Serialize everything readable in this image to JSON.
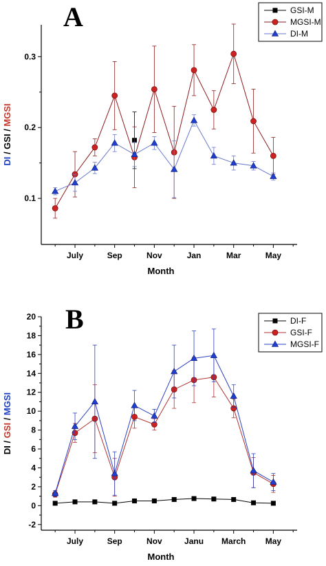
{
  "chart_data": [
    {
      "panel": "A",
      "type": "line",
      "xlabel": "Month",
      "ylabel_parts": [
        {
          "text": "DI",
          "color": "#1f3fbf"
        },
        {
          "text": " / ",
          "color": "#000000"
        },
        {
          "text": "GSI",
          "color": "#000000"
        },
        {
          "text": " / ",
          "color": "#000000"
        },
        {
          "text": "MGSI",
          "color": "#c0392b"
        }
      ],
      "x_tick_labels": [
        "July",
        "Sep",
        "Nov",
        "Jan",
        "Mar",
        "May"
      ],
      "x_tick_positions": [
        2,
        4,
        6,
        8,
        10,
        12
      ],
      "xlim": [
        0.3,
        13.2
      ],
      "ylim": [
        0.035,
        0.345
      ],
      "y_ticks": [
        0.1,
        0.2,
        0.3
      ],
      "y_tick_labels": [
        "0.1",
        "0.2",
        "0.3"
      ],
      "legend_position": "top-right",
      "series": [
        {
          "name": "GSI-M",
          "color": "#000000",
          "line_color": "#000000",
          "marker": "square",
          "x": [
            5
          ],
          "values": [
            0.182
          ],
          "err": [
            0.04
          ]
        },
        {
          "name": "MGSI-M",
          "color": "#cc2222",
          "line_color": "#8b1a1a",
          "marker": "circle",
          "x": [
            1,
            2,
            3,
            4,
            5,
            6,
            7,
            8,
            9,
            10,
            11,
            12
          ],
          "values": [
            0.086,
            0.134,
            0.172,
            0.245,
            0.158,
            0.254,
            0.165,
            0.281,
            0.225,
            0.304,
            0.209,
            0.16
          ],
          "err": [
            0.014,
            0.032,
            0.012,
            0.048,
            0.043,
            0.061,
            0.065,
            0.036,
            0.027,
            0.042,
            0.045,
            0.026
          ]
        },
        {
          "name": "DI-M",
          "color": "#1f3fd0",
          "line_color": "#6677cc",
          "marker": "triangle",
          "x": [
            1,
            2,
            3,
            4,
            5,
            6,
            7,
            8,
            9,
            10,
            11,
            12
          ],
          "values": [
            0.11,
            0.122,
            0.143,
            0.178,
            0.162,
            0.178,
            0.141,
            0.21,
            0.16,
            0.15,
            0.146,
            0.131
          ],
          "err": [
            0.005,
            0.012,
            0.008,
            0.012,
            0.017,
            0.009,
            0.04,
            0.008,
            0.012,
            0.01,
            0.006,
            0.005
          ]
        }
      ]
    },
    {
      "panel": "B",
      "type": "line",
      "xlabel": "Month",
      "ylabel_parts": [
        {
          "text": "DI",
          "color": "#000000"
        },
        {
          "text": " / ",
          "color": "#000000"
        },
        {
          "text": "GSI",
          "color": "#c0392b"
        },
        {
          "text": " / ",
          "color": "#000000"
        },
        {
          "text": "MGSI",
          "color": "#1f3fbf"
        }
      ],
      "x_tick_labels": [
        "July",
        "Sep",
        "Nov",
        "Janu",
        "March",
        "May"
      ],
      "x_tick_positions": [
        2,
        4,
        6,
        8,
        10,
        12
      ],
      "xlim": [
        0.3,
        13.2
      ],
      "ylim": [
        -2.6,
        20
      ],
      "y_ticks": [
        -2,
        0,
        2,
        4,
        6,
        8,
        10,
        12,
        14,
        16,
        18,
        20
      ],
      "y_tick_labels": [
        "-2",
        "0",
        "2",
        "4",
        "6",
        "8",
        "10",
        "12",
        "14",
        "16",
        "18",
        "20"
      ],
      "legend_position": "top-right",
      "series": [
        {
          "name": "DI-F",
          "color": "#000000",
          "line_color": "#000000",
          "marker": "square",
          "x": [
            1,
            2,
            3,
            4,
            5,
            6,
            7,
            8,
            9,
            10,
            11,
            12
          ],
          "values": [
            0.25,
            0.4,
            0.4,
            0.25,
            0.5,
            0.5,
            0.65,
            0.75,
            0.7,
            0.65,
            0.3,
            0.25
          ],
          "err": [
            0,
            0,
            0,
            0,
            0,
            0,
            0,
            0,
            0,
            0,
            0,
            0
          ]
        },
        {
          "name": "GSI-F",
          "color": "#cc2222",
          "line_color": "#b03030",
          "marker": "circle",
          "x": [
            1,
            2,
            3,
            4,
            5,
            6,
            7,
            8,
            9,
            10,
            11,
            12
          ],
          "values": [
            1.2,
            7.7,
            9.2,
            3.0,
            9.4,
            8.6,
            12.3,
            13.3,
            13.6,
            10.3,
            3.5,
            2.3
          ],
          "err": [
            0.3,
            1.0,
            3.6,
            2.0,
            1.2,
            0.6,
            2.0,
            2.4,
            2.1,
            1.0,
            1.6,
            0.9
          ]
        },
        {
          "name": "MGSI-F",
          "color": "#1f3fd0",
          "line_color": "#2a3fbf",
          "marker": "triangle",
          "x": [
            1,
            2,
            3,
            4,
            5,
            6,
            7,
            8,
            9,
            10,
            11,
            12
          ],
          "values": [
            1.3,
            8.4,
            11.0,
            3.4,
            10.6,
            9.5,
            14.2,
            15.6,
            15.9,
            11.6,
            3.7,
            2.5
          ],
          "err": [
            0.3,
            1.4,
            6.0,
            2.3,
            1.6,
            0.7,
            2.8,
            2.9,
            2.8,
            1.2,
            1.8,
            0.9
          ]
        }
      ]
    }
  ]
}
